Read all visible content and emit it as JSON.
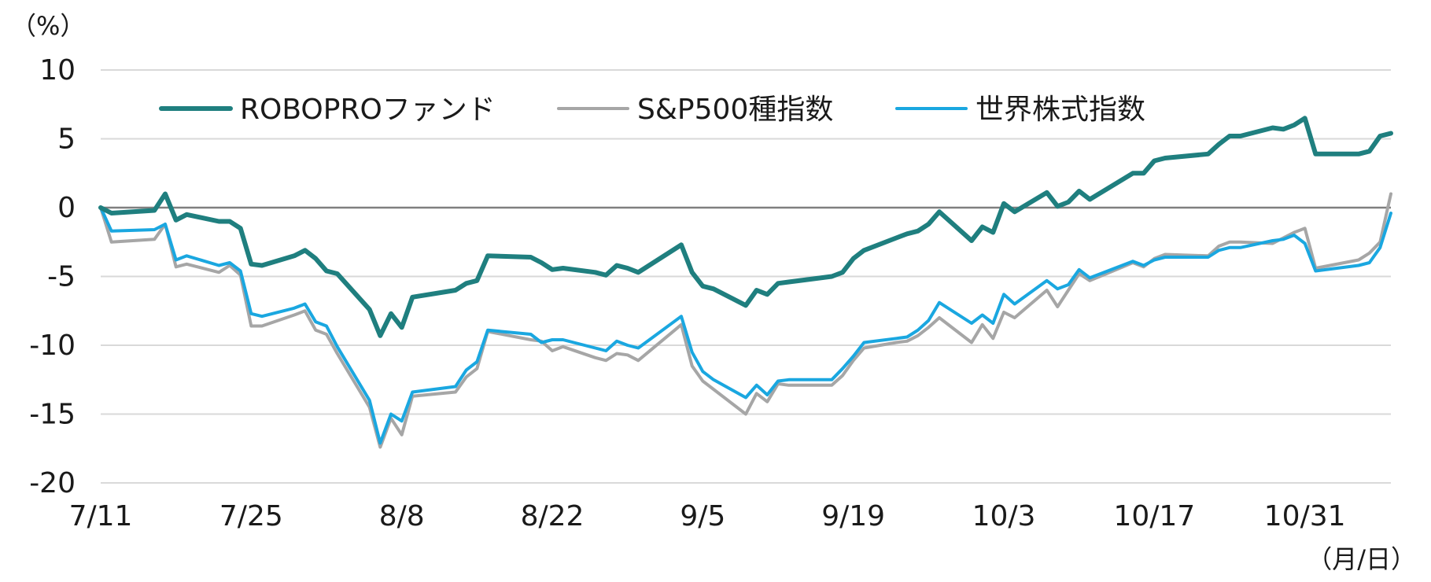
{
  "chart_data": {
    "type": "line",
    "y_unit_label": "（%）",
    "x_unit_label": "（月/日）",
    "ylim": [
      -20,
      10
    ],
    "yticks": [
      10,
      5,
      0,
      -5,
      -10,
      -15,
      -20
    ],
    "xlim": [
      "2024-07-11",
      "2024-11-08"
    ],
    "xticks": [
      {
        "date": "2024-07-11",
        "label": "7/11"
      },
      {
        "date": "2024-07-25",
        "label": "7/25"
      },
      {
        "date": "2024-08-08",
        "label": "8/8"
      },
      {
        "date": "2024-08-22",
        "label": "8/22"
      },
      {
        "date": "2024-09-05",
        "label": "9/5"
      },
      {
        "date": "2024-09-19",
        "label": "9/19"
      },
      {
        "date": "2024-10-03",
        "label": "10/3"
      },
      {
        "date": "2024-10-17",
        "label": "10/17"
      },
      {
        "date": "2024-10-31",
        "label": "10/31"
      }
    ],
    "grid": true,
    "legend_position": "top-left",
    "series": [
      {
        "name": "ROBOPROファンド",
        "color": "#1f7f7f",
        "points": [
          [
            "2024-07-11",
            0.0
          ],
          [
            "2024-07-12",
            -0.4
          ],
          [
            "2024-07-16",
            -0.2
          ],
          [
            "2024-07-17",
            1.0
          ],
          [
            "2024-07-18",
            -0.9
          ],
          [
            "2024-07-19",
            -0.5
          ],
          [
            "2024-07-22",
            -1.0
          ],
          [
            "2024-07-23",
            -1.0
          ],
          [
            "2024-07-24",
            -1.5
          ],
          [
            "2024-07-25",
            -4.1
          ],
          [
            "2024-07-26",
            -4.2
          ],
          [
            "2024-07-29",
            -3.5
          ],
          [
            "2024-07-30",
            -3.1
          ],
          [
            "2024-07-31",
            -3.7
          ],
          [
            "2024-08-01",
            -4.6
          ],
          [
            "2024-08-02",
            -4.8
          ],
          [
            "2024-08-05",
            -7.4
          ],
          [
            "2024-08-06",
            -9.3
          ],
          [
            "2024-08-07",
            -7.7
          ],
          [
            "2024-08-08",
            -8.7
          ],
          [
            "2024-08-09",
            -6.5
          ],
          [
            "2024-08-13",
            -6.0
          ],
          [
            "2024-08-14",
            -5.5
          ],
          [
            "2024-08-15",
            -5.3
          ],
          [
            "2024-08-16",
            -3.5
          ],
          [
            "2024-08-20",
            -3.6
          ],
          [
            "2024-08-21",
            -4.0
          ],
          [
            "2024-08-22",
            -4.5
          ],
          [
            "2024-08-23",
            -4.4
          ],
          [
            "2024-08-26",
            -4.7
          ],
          [
            "2024-08-27",
            -4.9
          ],
          [
            "2024-08-28",
            -4.2
          ],
          [
            "2024-08-29",
            -4.4
          ],
          [
            "2024-08-30",
            -4.7
          ],
          [
            "2024-09-03",
            -2.7
          ],
          [
            "2024-09-04",
            -4.7
          ],
          [
            "2024-09-05",
            -5.7
          ],
          [
            "2024-09-06",
            -5.9
          ],
          [
            "2024-09-09",
            -7.1
          ],
          [
            "2024-09-10",
            -6.0
          ],
          [
            "2024-09-11",
            -6.3
          ],
          [
            "2024-09-12",
            -5.5
          ],
          [
            "2024-09-13",
            -5.4
          ],
          [
            "2024-09-17",
            -5.0
          ],
          [
            "2024-09-18",
            -4.7
          ],
          [
            "2024-09-19",
            -3.7
          ],
          [
            "2024-09-20",
            -3.1
          ],
          [
            "2024-09-23",
            -2.2
          ],
          [
            "2024-09-24",
            -1.9
          ],
          [
            "2024-09-25",
            -1.7
          ],
          [
            "2024-09-26",
            -1.2
          ],
          [
            "2024-09-27",
            -0.3
          ],
          [
            "2024-09-30",
            -2.4
          ],
          [
            "2024-10-01",
            -1.4
          ],
          [
            "2024-10-02",
            -1.8
          ],
          [
            "2024-10-03",
            0.3
          ],
          [
            "2024-10-04",
            -0.3
          ],
          [
            "2024-10-07",
            1.1
          ],
          [
            "2024-10-08",
            0.1
          ],
          [
            "2024-10-09",
            0.4
          ],
          [
            "2024-10-10",
            1.2
          ],
          [
            "2024-10-11",
            0.6
          ],
          [
            "2024-10-15",
            2.5
          ],
          [
            "2024-10-16",
            2.5
          ],
          [
            "2024-10-17",
            3.4
          ],
          [
            "2024-10-18",
            3.6
          ],
          [
            "2024-10-22",
            3.9
          ],
          [
            "2024-10-23",
            4.6
          ],
          [
            "2024-10-24",
            5.2
          ],
          [
            "2024-10-25",
            5.2
          ],
          [
            "2024-10-28",
            5.8
          ],
          [
            "2024-10-29",
            5.7
          ],
          [
            "2024-10-30",
            6.0
          ],
          [
            "2024-10-31",
            6.5
          ],
          [
            "2024-11-01",
            3.9
          ],
          [
            "2024-11-05",
            3.9
          ],
          [
            "2024-11-06",
            4.1
          ],
          [
            "2024-11-07",
            5.2
          ],
          [
            "2024-11-08",
            5.4
          ]
        ]
      },
      {
        "name": "S&P500種指数",
        "color": "#a6a6a6",
        "points": [
          [
            "2024-07-11",
            0.0
          ],
          [
            "2024-07-12",
            -2.5
          ],
          [
            "2024-07-16",
            -2.3
          ],
          [
            "2024-07-17",
            -1.2
          ],
          [
            "2024-07-18",
            -4.3
          ],
          [
            "2024-07-19",
            -4.1
          ],
          [
            "2024-07-22",
            -4.7
          ],
          [
            "2024-07-23",
            -4.2
          ],
          [
            "2024-07-24",
            -4.9
          ],
          [
            "2024-07-25",
            -8.6
          ],
          [
            "2024-07-26",
            -8.6
          ],
          [
            "2024-07-29",
            -7.8
          ],
          [
            "2024-07-30",
            -7.5
          ],
          [
            "2024-07-31",
            -8.9
          ],
          [
            "2024-08-01",
            -9.2
          ],
          [
            "2024-08-02",
            -10.6
          ],
          [
            "2024-08-05",
            -14.5
          ],
          [
            "2024-08-06",
            -17.4
          ],
          [
            "2024-08-07",
            -15.3
          ],
          [
            "2024-08-08",
            -16.5
          ],
          [
            "2024-08-09",
            -13.7
          ],
          [
            "2024-08-13",
            -13.4
          ],
          [
            "2024-08-14",
            -12.3
          ],
          [
            "2024-08-15",
            -11.7
          ],
          [
            "2024-08-16",
            -9.0
          ],
          [
            "2024-08-20",
            -9.6
          ],
          [
            "2024-08-21",
            -9.7
          ],
          [
            "2024-08-22",
            -10.4
          ],
          [
            "2024-08-23",
            -10.1
          ],
          [
            "2024-08-26",
            -10.9
          ],
          [
            "2024-08-27",
            -11.1
          ],
          [
            "2024-08-28",
            -10.6
          ],
          [
            "2024-08-29",
            -10.7
          ],
          [
            "2024-08-30",
            -11.1
          ],
          [
            "2024-09-03",
            -8.5
          ],
          [
            "2024-09-04",
            -11.5
          ],
          [
            "2024-09-05",
            -12.6
          ],
          [
            "2024-09-06",
            -13.2
          ],
          [
            "2024-09-09",
            -15.0
          ],
          [
            "2024-09-10",
            -13.5
          ],
          [
            "2024-09-11",
            -14.1
          ],
          [
            "2024-09-12",
            -12.8
          ],
          [
            "2024-09-13",
            -12.9
          ],
          [
            "2024-09-17",
            -12.9
          ],
          [
            "2024-09-18",
            -12.2
          ],
          [
            "2024-09-19",
            -11.1
          ],
          [
            "2024-09-20",
            -10.2
          ],
          [
            "2024-09-23",
            -9.8
          ],
          [
            "2024-09-24",
            -9.7
          ],
          [
            "2024-09-25",
            -9.3
          ],
          [
            "2024-09-26",
            -8.7
          ],
          [
            "2024-09-27",
            -8.0
          ],
          [
            "2024-09-30",
            -9.8
          ],
          [
            "2024-10-01",
            -8.5
          ],
          [
            "2024-10-02",
            -9.5
          ],
          [
            "2024-10-03",
            -7.6
          ],
          [
            "2024-10-04",
            -8.0
          ],
          [
            "2024-10-07",
            -6.0
          ],
          [
            "2024-10-08",
            -7.2
          ],
          [
            "2024-10-09",
            -6.0
          ],
          [
            "2024-10-10",
            -4.8
          ],
          [
            "2024-10-11",
            -5.3
          ],
          [
            "2024-10-15",
            -4.0
          ],
          [
            "2024-10-16",
            -4.3
          ],
          [
            "2024-10-17",
            -3.7
          ],
          [
            "2024-10-18",
            -3.4
          ],
          [
            "2024-10-22",
            -3.5
          ],
          [
            "2024-10-23",
            -2.8
          ],
          [
            "2024-10-24",
            -2.5
          ],
          [
            "2024-10-25",
            -2.5
          ],
          [
            "2024-10-28",
            -2.6
          ],
          [
            "2024-10-29",
            -2.2
          ],
          [
            "2024-10-30",
            -1.8
          ],
          [
            "2024-10-31",
            -1.5
          ],
          [
            "2024-11-01",
            -4.4
          ],
          [
            "2024-11-05",
            -3.8
          ],
          [
            "2024-11-06",
            -3.3
          ],
          [
            "2024-11-07",
            -2.5
          ],
          [
            "2024-11-08",
            1.0
          ]
        ]
      },
      {
        "name": "世界株式指数",
        "color": "#1aa7e0",
        "points": [
          [
            "2024-07-11",
            0.0
          ],
          [
            "2024-07-12",
            -1.7
          ],
          [
            "2024-07-16",
            -1.6
          ],
          [
            "2024-07-17",
            -1.2
          ],
          [
            "2024-07-18",
            -3.8
          ],
          [
            "2024-07-19",
            -3.5
          ],
          [
            "2024-07-22",
            -4.2
          ],
          [
            "2024-07-23",
            -4.0
          ],
          [
            "2024-07-24",
            -4.6
          ],
          [
            "2024-07-25",
            -7.7
          ],
          [
            "2024-07-26",
            -7.9
          ],
          [
            "2024-07-29",
            -7.3
          ],
          [
            "2024-07-30",
            -7.0
          ],
          [
            "2024-07-31",
            -8.3
          ],
          [
            "2024-08-01",
            -8.6
          ],
          [
            "2024-08-02",
            -10.1
          ],
          [
            "2024-08-05",
            -14.0
          ],
          [
            "2024-08-06",
            -17.1
          ],
          [
            "2024-08-07",
            -15.0
          ],
          [
            "2024-08-08",
            -15.5
          ],
          [
            "2024-08-09",
            -13.4
          ],
          [
            "2024-08-13",
            -13.0
          ],
          [
            "2024-08-14",
            -11.8
          ],
          [
            "2024-08-15",
            -11.2
          ],
          [
            "2024-08-16",
            -8.9
          ],
          [
            "2024-08-20",
            -9.2
          ],
          [
            "2024-08-21",
            -9.8
          ],
          [
            "2024-08-22",
            -9.6
          ],
          [
            "2024-08-23",
            -9.6
          ],
          [
            "2024-08-26",
            -10.2
          ],
          [
            "2024-08-27",
            -10.4
          ],
          [
            "2024-08-28",
            -9.7
          ],
          [
            "2024-08-29",
            -10.0
          ],
          [
            "2024-08-30",
            -10.2
          ],
          [
            "2024-09-03",
            -7.9
          ],
          [
            "2024-09-04",
            -10.5
          ],
          [
            "2024-09-05",
            -11.9
          ],
          [
            "2024-09-06",
            -12.5
          ],
          [
            "2024-09-09",
            -13.8
          ],
          [
            "2024-09-10",
            -12.9
          ],
          [
            "2024-09-11",
            -13.6
          ],
          [
            "2024-09-12",
            -12.6
          ],
          [
            "2024-09-13",
            -12.5
          ],
          [
            "2024-09-17",
            -12.5
          ],
          [
            "2024-09-18",
            -11.7
          ],
          [
            "2024-09-19",
            -10.8
          ],
          [
            "2024-09-20",
            -9.8
          ],
          [
            "2024-09-23",
            -9.5
          ],
          [
            "2024-09-24",
            -9.4
          ],
          [
            "2024-09-25",
            -8.9
          ],
          [
            "2024-09-26",
            -8.2
          ],
          [
            "2024-09-27",
            -6.9
          ],
          [
            "2024-09-30",
            -8.4
          ],
          [
            "2024-10-01",
            -7.8
          ],
          [
            "2024-10-02",
            -8.4
          ],
          [
            "2024-10-03",
            -6.3
          ],
          [
            "2024-10-04",
            -7.0
          ],
          [
            "2024-10-07",
            -5.3
          ],
          [
            "2024-10-08",
            -5.9
          ],
          [
            "2024-10-09",
            -5.6
          ],
          [
            "2024-10-10",
            -4.5
          ],
          [
            "2024-10-11",
            -5.1
          ],
          [
            "2024-10-15",
            -3.9
          ],
          [
            "2024-10-16",
            -4.2
          ],
          [
            "2024-10-17",
            -3.8
          ],
          [
            "2024-10-18",
            -3.6
          ],
          [
            "2024-10-22",
            -3.6
          ],
          [
            "2024-10-23",
            -3.1
          ],
          [
            "2024-10-24",
            -2.9
          ],
          [
            "2024-10-25",
            -2.9
          ],
          [
            "2024-10-28",
            -2.4
          ],
          [
            "2024-10-29",
            -2.3
          ],
          [
            "2024-10-30",
            -2.0
          ],
          [
            "2024-10-31",
            -2.6
          ],
          [
            "2024-11-01",
            -4.6
          ],
          [
            "2024-11-05",
            -4.2
          ],
          [
            "2024-11-06",
            -4.0
          ],
          [
            "2024-11-07",
            -2.9
          ],
          [
            "2024-11-08",
            -0.4
          ]
        ]
      }
    ]
  }
}
